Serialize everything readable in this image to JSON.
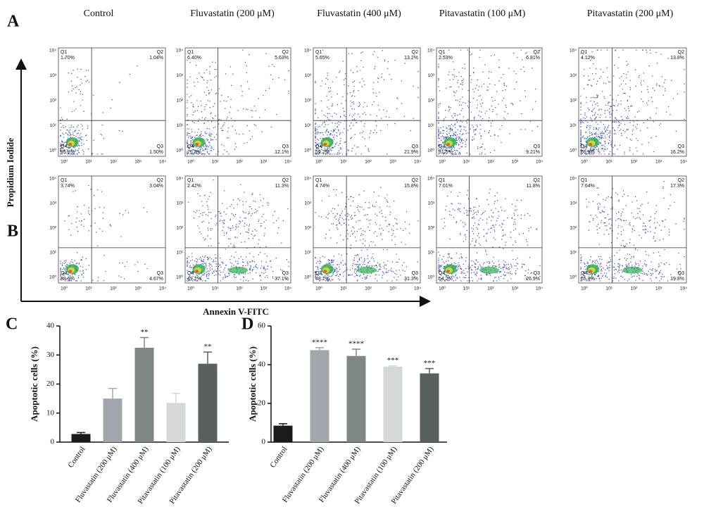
{
  "panel_labels": [
    "A",
    "B",
    "C",
    "D"
  ],
  "flow": {
    "columns": [
      "Control",
      "Fluvastatin (200 μM)",
      "Fluvastatin (400 μM)",
      "Pitavastatin (100 μM)",
      "Pitavastatin (200 μM)"
    ],
    "y_axis_label": "Propidium Iodide",
    "x_axis_label": "Annexin V-FITC",
    "tick_labels": [
      "10⁰",
      "10¹",
      "10²",
      "10³",
      "10⁴"
    ],
    "quadrant_names": [
      "Q1",
      "Q2",
      "Q3",
      "Q4"
    ],
    "rows": [
      [
        [
          "1.70%",
          "1.04%",
          "1.50%",
          "95.8%"
        ],
        [
          "6.40%",
          "5.63%",
          "12.1%",
          "75.8%"
        ],
        [
          "5.65%",
          "13.2%",
          "21.9%",
          "59.2%"
        ],
        [
          "2.53%",
          "6.81%",
          "9.21%",
          "81.5%"
        ],
        [
          "4.12%",
          "13.8%",
          "16.2%",
          "65.9%"
        ]
      ],
      [
        [
          "3.74%",
          "3.04%",
          "4.67%",
          "88.6%"
        ],
        [
          "2.42%",
          "11.3%",
          "37.1%",
          "49.2%"
        ],
        [
          "4.74%",
          "15.8%",
          "31.3%",
          "48.2%"
        ],
        [
          "7.01%",
          "11.8%",
          "26.9%",
          "54.2%"
        ],
        [
          "7.64%",
          "17.3%",
          "19.8%",
          "55.3%"
        ]
      ]
    ]
  },
  "chart_data": [
    {
      "type": "bar",
      "y_label": "Apoptotic cells (%)",
      "categories": [
        "Control",
        "Fluvastatin (200 μM)",
        "Fluvastatin (400 μM)",
        "Pitavastatin (100 μM)",
        "Pitavastatin (200 μM)"
      ],
      "values": [
        2.8,
        15,
        32.5,
        13.5,
        27
      ],
      "errors": [
        0.5,
        3.5,
        3.5,
        3.3,
        4
      ],
      "annotations": [
        null,
        null,
        "**",
        null,
        "**"
      ],
      "colors": [
        "#1c1c1c",
        "#a2a7ad",
        "#7f8784",
        "#d4d9d6",
        "#5a5f60"
      ],
      "ylim": [
        0,
        40
      ],
      "yticks": [
        0,
        10,
        20,
        30,
        40
      ]
    },
    {
      "type": "bar",
      "y_label": "Apoptotic cells (%)",
      "categories": [
        "Control",
        "Fluvastatin (200 μM)",
        "Fluvastatin (400 μM)",
        "Pitavastatin (100 μM)",
        "Pitavastatin (200 μM)"
      ],
      "values": [
        8.5,
        47.5,
        44.5,
        39,
        35.5
      ],
      "errors": [
        1,
        1.3,
        3.5,
        0.4,
        2.5
      ],
      "annotations": [
        null,
        "****",
        "****",
        "***",
        "***"
      ],
      "colors": [
        "#1c1c1c",
        "#a2a7ad",
        "#7f8784",
        "#d4d9d6",
        "#5a5f60"
      ],
      "ylim": [
        0,
        60
      ],
      "yticks": [
        0,
        20,
        40,
        60
      ]
    }
  ]
}
